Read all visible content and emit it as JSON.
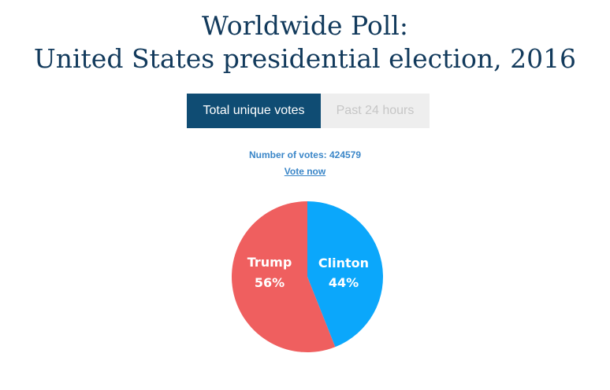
{
  "header": {
    "title_line1": "Worldwide Poll:",
    "title_line2": "United States presidential election, 2016"
  },
  "tabs": [
    {
      "label": "Total unique votes",
      "active": true
    },
    {
      "label": "Past 24 hours",
      "active": false
    }
  ],
  "votes": {
    "count_text": "Number of votes: 424579",
    "vote_now_label": "Vote now"
  },
  "colors": {
    "title": "#123a5c",
    "tab_active": "#0f4c73",
    "tab_inactive": "#eeeeee",
    "link": "#3a86c8",
    "trump": "#ef5f5f",
    "clinton": "#0ba7fb"
  },
  "chart_data": {
    "type": "pie",
    "slices": [
      {
        "name": "Trump",
        "value": 56,
        "label": "56%",
        "color": "#ef5f5f"
      },
      {
        "name": "Clinton",
        "value": 44,
        "label": "44%",
        "color": "#0ba7fb"
      }
    ]
  }
}
